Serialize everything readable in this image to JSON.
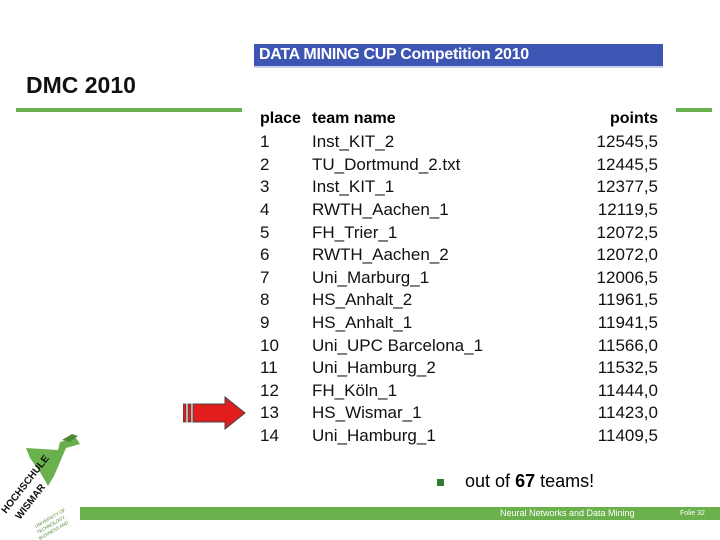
{
  "slide": {
    "title": "DMC 2010"
  },
  "banner": {
    "label": "DATA MINING CUP Competition 2010"
  },
  "table": {
    "headers": {
      "place": "place",
      "team": "team name",
      "points": "points"
    },
    "rows": [
      {
        "place": "1",
        "team": "Inst_KIT_2",
        "points": "12545,5"
      },
      {
        "place": "2",
        "team": "TU_Dortmund_2.txt",
        "points": "12445,5"
      },
      {
        "place": "3",
        "team": "Inst_KIT_1",
        "points": "12377,5"
      },
      {
        "place": "4",
        "team": "RWTH_Aachen_1",
        "points": "12119,5"
      },
      {
        "place": "5",
        "team": "FH_Trier_1",
        "points": "12072,5"
      },
      {
        "place": "6",
        "team": "RWTH_Aachen_2",
        "points": "12072,0"
      },
      {
        "place": "7",
        "team": "Uni_Marburg_1",
        "points": "12006,5"
      },
      {
        "place": "8",
        "team": "HS_Anhalt_2",
        "points": "11961,5"
      },
      {
        "place": "9",
        "team": "HS_Anhalt_1",
        "points": "11941,5"
      },
      {
        "place": "10",
        "team": "Uni_UPC Barcelona_1",
        "points": "11566,0"
      },
      {
        "place": "11",
        "team": "Uni_Hamburg_2",
        "points": "11532,5"
      },
      {
        "place": "12",
        "team": "FH_Köln_1",
        "points": "11444,0"
      },
      {
        "place": "13",
        "team": "HS_Wismar_1",
        "points": "11423,0"
      },
      {
        "place": "14",
        "team": "Uni_Hamburg_1",
        "points": "11409,5"
      }
    ]
  },
  "note": {
    "prefix": "out of",
    "count": "67",
    "suffix": "teams!"
  },
  "footer": {
    "course": "Neural Networks and Data Mining",
    "page": "Folie 32"
  },
  "logo": {
    "text": "HOCHSCHULE WISMAR",
    "subtext": "UNIVERSITY OF TECHNOLOGY, BUSINESS AND DESIGN"
  },
  "colors": {
    "accent_green": "#6ab04c",
    "banner_blue": "#3e56b3",
    "arrow_red": "#e11d1d"
  }
}
